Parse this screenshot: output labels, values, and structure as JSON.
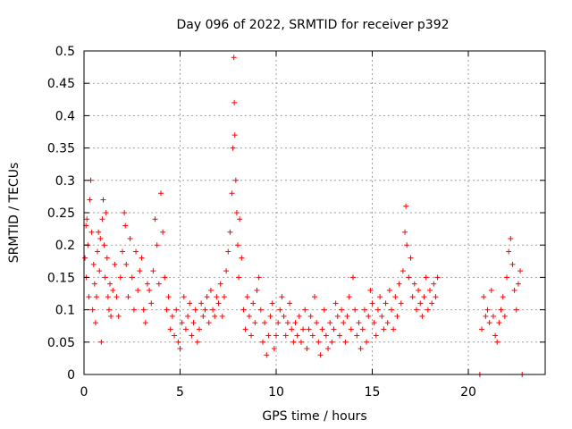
{
  "chart_data": {
    "type": "scatter",
    "title": "Day 096 of 2022, SRMTID for receiver p392",
    "xlabel": "GPS time / hours",
    "ylabel": "SRMTID / TECUs",
    "xlim": [
      0,
      24
    ],
    "ylim": [
      0,
      0.5
    ],
    "grid": true,
    "marker": "+",
    "series_color": "#ff0000",
    "x_ticks": [
      0,
      5,
      10,
      15,
      20
    ],
    "x_tick_labels": [
      "0",
      "5",
      "10",
      "15",
      "20"
    ],
    "y_ticks": [
      0,
      0.05,
      0.1,
      0.15,
      0.2,
      0.25,
      0.3,
      0.35,
      0.4,
      0.45,
      0.5
    ],
    "y_tick_labels": [
      "0",
      "0.05",
      "0.1",
      "0.15",
      "0.2",
      "0.25",
      "0.3",
      "0.35",
      "0.4",
      "0.45",
      "0.5"
    ],
    "series": [
      {
        "name": "SRMTID",
        "points": [
          [
            0.05,
            0.18
          ],
          [
            0.1,
            0.23
          ],
          [
            0.12,
            0.15
          ],
          [
            0.15,
            0.24
          ],
          [
            0.2,
            0.2
          ],
          [
            0.25,
            0.12
          ],
          [
            0.3,
            0.27
          ],
          [
            0.35,
            0.3
          ],
          [
            0.4,
            0.22
          ],
          [
            0.45,
            0.1
          ],
          [
            0.5,
            0.17
          ],
          [
            0.55,
            0.14
          ],
          [
            0.6,
            0.08
          ],
          [
            0.65,
            0.12
          ],
          [
            0.7,
            0.19
          ],
          [
            0.75,
            0.22
          ],
          [
            0.8,
            0.16
          ],
          [
            0.85,
            0.21
          ],
          [
            0.9,
            0.05
          ],
          [
            0.95,
            0.24
          ],
          [
            1.0,
            0.27
          ],
          [
            1.05,
            0.2
          ],
          [
            1.1,
            0.15
          ],
          [
            1.15,
            0.25
          ],
          [
            1.2,
            0.18
          ],
          [
            1.25,
            0.12
          ],
          [
            1.3,
            0.1
          ],
          [
            1.35,
            0.14
          ],
          [
            1.4,
            0.09
          ],
          [
            1.5,
            0.13
          ],
          [
            1.6,
            0.17
          ],
          [
            1.7,
            0.12
          ],
          [
            1.8,
            0.09
          ],
          [
            1.9,
            0.15
          ],
          [
            2.0,
            0.19
          ],
          [
            2.1,
            0.25
          ],
          [
            2.15,
            0.23
          ],
          [
            2.2,
            0.17
          ],
          [
            2.3,
            0.12
          ],
          [
            2.4,
            0.21
          ],
          [
            2.5,
            0.15
          ],
          [
            2.6,
            0.1
          ],
          [
            2.7,
            0.19
          ],
          [
            2.8,
            0.13
          ],
          [
            2.9,
            0.16
          ],
          [
            3.0,
            0.18
          ],
          [
            3.1,
            0.1
          ],
          [
            3.2,
            0.08
          ],
          [
            3.3,
            0.14
          ],
          [
            3.4,
            0.13
          ],
          [
            3.5,
            0.11
          ],
          [
            3.6,
            0.16
          ],
          [
            3.7,
            0.24
          ],
          [
            3.8,
            0.2
          ],
          [
            3.9,
            0.14
          ],
          [
            4.0,
            0.28
          ],
          [
            4.1,
            0.22
          ],
          [
            4.2,
            0.15
          ],
          [
            4.3,
            0.1
          ],
          [
            4.4,
            0.12
          ],
          [
            4.5,
            0.07
          ],
          [
            4.6,
            0.09
          ],
          [
            4.7,
            0.06
          ],
          [
            4.8,
            0.1
          ],
          [
            4.9,
            0.05
          ],
          [
            5.0,
            0.04
          ],
          [
            5.1,
            0.08
          ],
          [
            5.2,
            0.12
          ],
          [
            5.3,
            0.07
          ],
          [
            5.4,
            0.09
          ],
          [
            5.5,
            0.11
          ],
          [
            5.6,
            0.06
          ],
          [
            5.7,
            0.08
          ],
          [
            5.8,
            0.1
          ],
          [
            5.9,
            0.05
          ],
          [
            6.0,
            0.07
          ],
          [
            6.1,
            0.11
          ],
          [
            6.2,
            0.09
          ],
          [
            6.3,
            0.1
          ],
          [
            6.4,
            0.12
          ],
          [
            6.5,
            0.08
          ],
          [
            6.6,
            0.13
          ],
          [
            6.7,
            0.1
          ],
          [
            6.8,
            0.09
          ],
          [
            6.9,
            0.12
          ],
          [
            7.0,
            0.11
          ],
          [
            7.1,
            0.14
          ],
          [
            7.2,
            0.09
          ],
          [
            7.3,
            0.12
          ],
          [
            7.4,
            0.16
          ],
          [
            7.5,
            0.19
          ],
          [
            7.6,
            0.22
          ],
          [
            7.7,
            0.28
          ],
          [
            7.75,
            0.35
          ],
          [
            7.8,
            0.49
          ],
          [
            7.82,
            0.42
          ],
          [
            7.85,
            0.37
          ],
          [
            7.9,
            0.3
          ],
          [
            7.95,
            0.25
          ],
          [
            8.0,
            0.2
          ],
          [
            8.05,
            0.15
          ],
          [
            8.1,
            0.24
          ],
          [
            8.2,
            0.18
          ],
          [
            8.3,
            0.1
          ],
          [
            8.4,
            0.07
          ],
          [
            8.5,
            0.12
          ],
          [
            8.6,
            0.09
          ],
          [
            8.7,
            0.06
          ],
          [
            8.8,
            0.11
          ],
          [
            8.9,
            0.08
          ],
          [
            9.0,
            0.13
          ],
          [
            9.1,
            0.15
          ],
          [
            9.2,
            0.1
          ],
          [
            9.3,
            0.05
          ],
          [
            9.4,
            0.08
          ],
          [
            9.5,
            0.03
          ],
          [
            9.6,
            0.06
          ],
          [
            9.7,
            0.09
          ],
          [
            9.8,
            0.11
          ],
          [
            9.9,
            0.04
          ],
          [
            10.0,
            0.06
          ],
          [
            10.1,
            0.08
          ],
          [
            10.2,
            0.1
          ],
          [
            10.3,
            0.12
          ],
          [
            10.4,
            0.09
          ],
          [
            10.5,
            0.06
          ],
          [
            10.6,
            0.08
          ],
          [
            10.7,
            0.11
          ],
          [
            10.8,
            0.07
          ],
          [
            10.9,
            0.05
          ],
          [
            11.0,
            0.08
          ],
          [
            11.1,
            0.06
          ],
          [
            11.2,
            0.09
          ],
          [
            11.3,
            0.05
          ],
          [
            11.4,
            0.07
          ],
          [
            11.5,
            0.1
          ],
          [
            11.6,
            0.04
          ],
          [
            11.7,
            0.07
          ],
          [
            11.8,
            0.09
          ],
          [
            11.9,
            0.06
          ],
          [
            12.0,
            0.12
          ],
          [
            12.1,
            0.08
          ],
          [
            12.2,
            0.05
          ],
          [
            12.3,
            0.03
          ],
          [
            12.4,
            0.07
          ],
          [
            12.5,
            0.1
          ],
          [
            12.6,
            0.06
          ],
          [
            12.7,
            0.04
          ],
          [
            12.8,
            0.08
          ],
          [
            12.9,
            0.05
          ],
          [
            13.0,
            0.07
          ],
          [
            13.1,
            0.11
          ],
          [
            13.2,
            0.09
          ],
          [
            13.3,
            0.06
          ],
          [
            13.4,
            0.1
          ],
          [
            13.5,
            0.08
          ],
          [
            13.6,
            0.05
          ],
          [
            13.7,
            0.09
          ],
          [
            13.8,
            0.12
          ],
          [
            13.9,
            0.07
          ],
          [
            14.0,
            0.15
          ],
          [
            14.1,
            0.1
          ],
          [
            14.2,
            0.06
          ],
          [
            14.3,
            0.08
          ],
          [
            14.4,
            0.04
          ],
          [
            14.5,
            0.07
          ],
          [
            14.6,
            0.1
          ],
          [
            14.7,
            0.05
          ],
          [
            14.8,
            0.09
          ],
          [
            14.9,
            0.13
          ],
          [
            15.0,
            0.11
          ],
          [
            15.1,
            0.08
          ],
          [
            15.2,
            0.06
          ],
          [
            15.3,
            0.1
          ],
          [
            15.4,
            0.12
          ],
          [
            15.5,
            0.09
          ],
          [
            15.6,
            0.07
          ],
          [
            15.7,
            0.11
          ],
          [
            15.8,
            0.08
          ],
          [
            15.9,
            0.13
          ],
          [
            16.0,
            0.1
          ],
          [
            16.1,
            0.07
          ],
          [
            16.2,
            0.12
          ],
          [
            16.3,
            0.09
          ],
          [
            16.4,
            0.14
          ],
          [
            16.5,
            0.11
          ],
          [
            16.6,
            0.16
          ],
          [
            16.7,
            0.22
          ],
          [
            16.75,
            0.26
          ],
          [
            16.8,
            0.2
          ],
          [
            16.9,
            0.15
          ],
          [
            17.0,
            0.18
          ],
          [
            17.1,
            0.12
          ],
          [
            17.2,
            0.14
          ],
          [
            17.3,
            0.1
          ],
          [
            17.4,
            0.13
          ],
          [
            17.5,
            0.11
          ],
          [
            17.6,
            0.09
          ],
          [
            17.7,
            0.12
          ],
          [
            17.8,
            0.15
          ],
          [
            17.9,
            0.1
          ],
          [
            18.0,
            0.13
          ],
          [
            18.1,
            0.11
          ],
          [
            18.2,
            0.14
          ],
          [
            18.3,
            0.12
          ],
          [
            18.4,
            0.15
          ],
          [
            20.6,
            0.0
          ],
          [
            20.7,
            0.07
          ],
          [
            20.8,
            0.12
          ],
          [
            20.9,
            0.09
          ],
          [
            21.0,
            0.1
          ],
          [
            21.1,
            0.08
          ],
          [
            21.2,
            0.13
          ],
          [
            21.3,
            0.09
          ],
          [
            21.4,
            0.06
          ],
          [
            21.5,
            0.05
          ],
          [
            21.6,
            0.08
          ],
          [
            21.7,
            0.1
          ],
          [
            21.8,
            0.12
          ],
          [
            21.9,
            0.09
          ],
          [
            22.0,
            0.15
          ],
          [
            22.1,
            0.19
          ],
          [
            22.2,
            0.21
          ],
          [
            22.3,
            0.17
          ],
          [
            22.4,
            0.13
          ],
          [
            22.5,
            0.1
          ],
          [
            22.6,
            0.14
          ],
          [
            22.7,
            0.16
          ],
          [
            22.8,
            0.0
          ]
        ]
      }
    ]
  }
}
